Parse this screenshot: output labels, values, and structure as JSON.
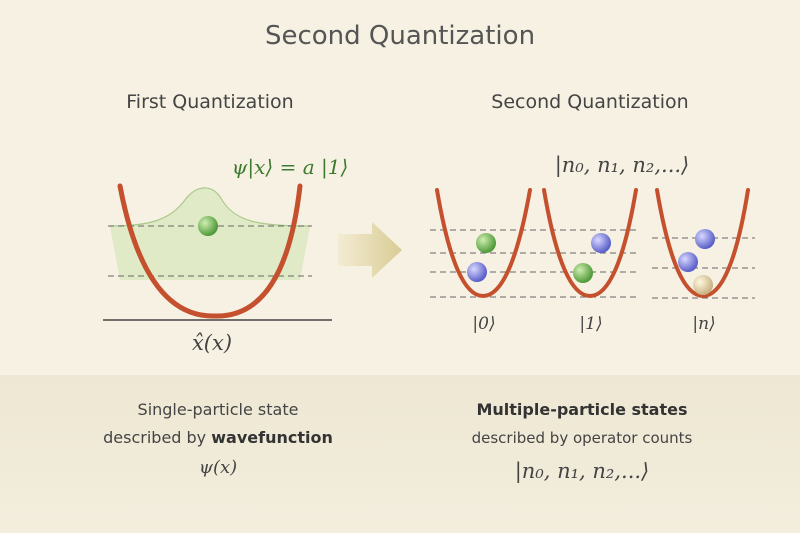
{
  "title": "Second Quantization",
  "left": {
    "heading": "First Quantization",
    "formula": "ψ|x⟩ = a |1⟩",
    "axis_label": "x̂(x)",
    "caption": {
      "line1": "Single-particle state",
      "line2_prefix": "described by",
      "line2_bold": "wavefunction",
      "line3": "ψ(x)"
    }
  },
  "right": {
    "heading": "Second Quantization",
    "formula": "|n₀, n₁, n₂,...⟩",
    "wells": [
      {
        "label": "|0⟩"
      },
      {
        "label": "|1⟩"
      },
      {
        "label": "|n⟩"
      }
    ],
    "caption": {
      "line1": "Multiple-particle states",
      "line2": "described by operator counts",
      "line3": "|n₀, n₁, n₂,...⟩"
    }
  }
}
